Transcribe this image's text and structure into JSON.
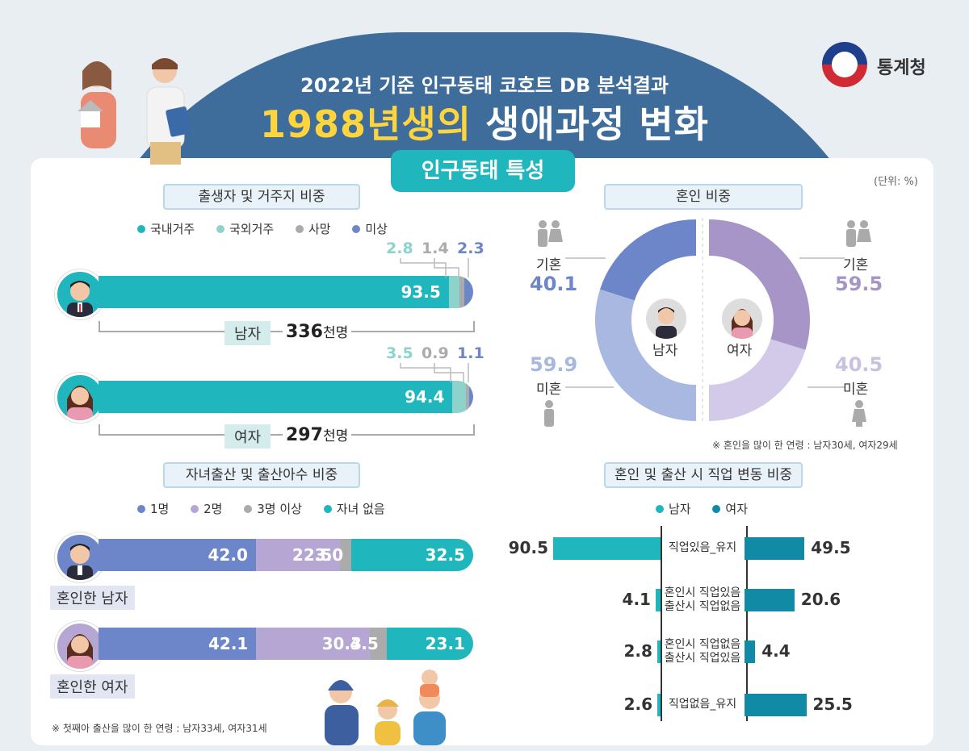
{
  "header": {
    "subtitle": "2022년 기준 인구동태 코호트 DB 분석결과",
    "title_highlight": "1988년생의",
    "title_rest": " 생애과정 변화",
    "agency": "통계청",
    "tab": "인구동태 특성",
    "unit": "(단위: %)"
  },
  "colors": {
    "teal": "#1fb6bd",
    "mint": "#8dd3cc",
    "gray": "#ababab",
    "blue": "#6d86c9",
    "purple": "#b5a6d3",
    "dark_teal": "#118aa6",
    "light_blue": "#a8b8e0",
    "light_purple": "#d2cae8"
  },
  "chart_data": [
    {
      "type": "bar",
      "title": "출생자 및 거주지 비중",
      "legend": [
        "국내거주",
        "국외거주",
        "사망",
        "미상"
      ],
      "categories": [
        "남자",
        "여자"
      ],
      "series": [
        {
          "name": "국내거주",
          "values": [
            93.5,
            94.4
          ]
        },
        {
          "name": "국외거주",
          "values": [
            2.8,
            3.5
          ]
        },
        {
          "name": "사망",
          "values": [
            1.4,
            0.9
          ]
        },
        {
          "name": "미상",
          "values": [
            2.3,
            1.1
          ]
        }
      ],
      "male_label": "남자",
      "male_total": "336",
      "female_label": "여자",
      "female_total": "297",
      "total_unit": "천명",
      "male_top": [
        "2.8",
        "1.4",
        "2.3"
      ],
      "female_top": [
        "3.5",
        "0.9",
        "1.1"
      ]
    },
    {
      "type": "pie",
      "title": "혼인 비중",
      "male": {
        "label": "남자",
        "married_label": "기혼",
        "married": 40.1,
        "single_label": "미혼",
        "single": 59.9
      },
      "female": {
        "label": "여자",
        "married_label": "기혼",
        "married": 59.5,
        "single_label": "미혼",
        "single": 40.5
      },
      "note": "※ 혼인을 많이 한 연령 : 남자30세, 여자29세"
    },
    {
      "type": "bar",
      "title": "자녀출산 및 출산아수 비중",
      "legend": [
        "1명",
        "2명",
        "3명 이상",
        "자녀 없음"
      ],
      "categories": [
        "혼인한 남자",
        "혼인한 여자"
      ],
      "series": [
        {
          "name": "1명",
          "values": [
            42.0,
            42.1
          ]
        },
        {
          "name": "2명",
          "values": [
            22.5,
            30.3
          ]
        },
        {
          "name": "3명 이상",
          "values": [
            3.0,
            4.5
          ]
        },
        {
          "name": "자녀 없음",
          "values": [
            32.5,
            23.1
          ]
        }
      ],
      "male_labels": [
        "42.0",
        "22.5",
        "3.0",
        "32.5"
      ],
      "female_labels": [
        "42.1",
        "30.3",
        "4.5",
        "23.1"
      ],
      "note": "※ 첫째아 출산을 많이 한 연령 : 남자33세, 여자31세"
    },
    {
      "type": "bar",
      "title": "혼인 및 출산 시 직업 변동 비중",
      "legend": [
        "남자",
        "여자"
      ],
      "categories": [
        "직업있음_유지",
        "혼인시 직업있음|출산시 직업없음",
        "혼인시 직업없음|출산시 직업있음",
        "직업없음_유지"
      ],
      "cat_line1": [
        "직업있음_유지",
        "혼인시 직업있음",
        "혼인시 직업없음",
        "직업없음_유지"
      ],
      "cat_line2": [
        "",
        "출산시 직업없음",
        "출산시 직업있음",
        ""
      ],
      "series": [
        {
          "name": "남자",
          "values": [
            90.5,
            4.1,
            2.8,
            2.6
          ]
        },
        {
          "name": "여자",
          "values": [
            49.5,
            20.6,
            4.4,
            25.5
          ]
        }
      ],
      "male_labels": [
        "90.5",
        "4.1",
        "2.8",
        "2.6"
      ],
      "female_labels": [
        "49.5",
        "20.6",
        "4.4",
        "25.5"
      ]
    }
  ]
}
